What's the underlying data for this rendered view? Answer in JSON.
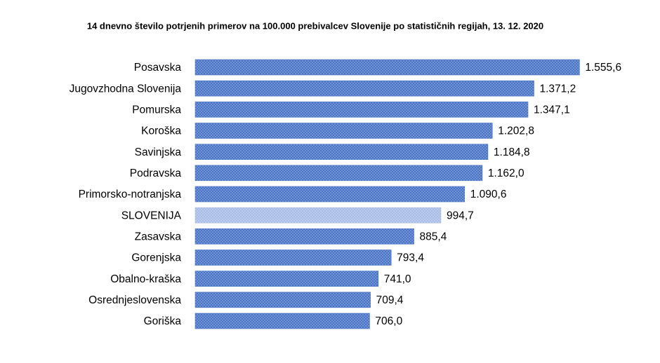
{
  "chart_data": {
    "type": "bar",
    "orientation": "horizontal",
    "title": "14 dnevno število potrjenih primerov na 100.000 prebivalcev Slovenije po statističnih regijah, 13. 12. 2020",
    "categories": [
      "Posavska",
      "Jugovzhodna Slovenija",
      "Pomurska",
      "Koroška",
      "Savinjska",
      "Podravska",
      "Primorsko-notranjska",
      "SLOVENIJA",
      "Zasavska",
      "Gorenjska",
      "Obalno-kraška",
      "Osrednjeslovenska",
      "Goriška"
    ],
    "values": [
      1555.6,
      1371.2,
      1347.1,
      1202.8,
      1184.8,
      1162.0,
      1090.6,
      994.7,
      885.4,
      793.4,
      741.0,
      709.4,
      706.0
    ],
    "value_labels": [
      "1.555,6",
      "1.371,2",
      "1.347,1",
      "1.202,8",
      "1.184,8",
      "1.162,0",
      "1.090,6",
      "994,7",
      "885,4",
      "793,4",
      "741,0",
      "709,4",
      "706,0"
    ],
    "colors": [
      "#4a74c6",
      "#4a74c6",
      "#4a74c6",
      "#4a74c6",
      "#4a74c6",
      "#4a74c6",
      "#4a74c6",
      "#a9bde6",
      "#4a74c6",
      "#4a74c6",
      "#4a74c6",
      "#4a74c6",
      "#4a74c6"
    ],
    "xlim": [
      0,
      1600
    ]
  }
}
